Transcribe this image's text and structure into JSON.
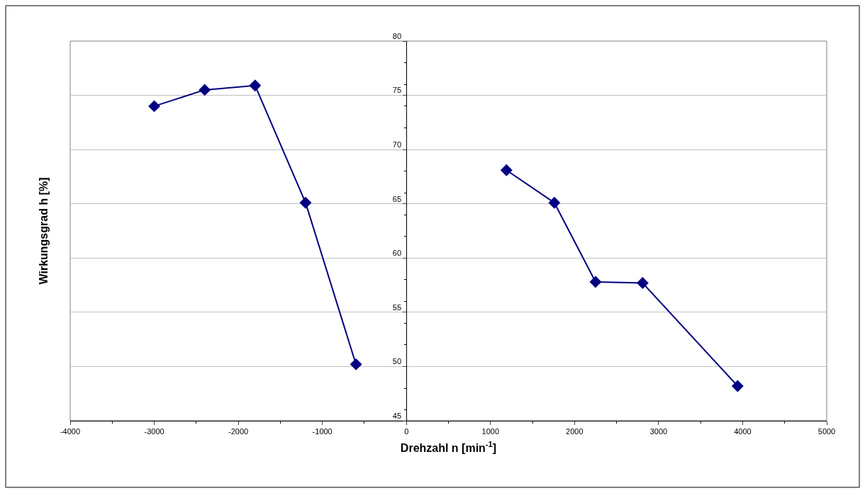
{
  "chart_data": {
    "type": "line",
    "xlabel": "Drehzahl n [min$^{-1}$]",
    "ylabel": "Wirkungsgrad h [%]",
    "series": [
      {
        "color": "#000080",
        "x": [
          -3000,
          -2400,
          -1800,
          -1200,
          -600
        ],
        "values": [
          74.0,
          75.5,
          75.9,
          65.1,
          50.2
        ]
      },
      {
        "color": "#000080",
        "x": [
          1190,
          1760,
          2250,
          2810,
          3940
        ],
        "values": [
          68.1,
          65.1,
          57.8,
          57.7,
          48.2
        ]
      }
    ],
    "xlim": [
      -4000,
      5000
    ],
    "xticks": [
      -4000,
      -3000,
      -2000,
      -1000,
      0,
      1000,
      2000,
      3000,
      4000,
      5000
    ],
    "ylim": [
      45,
      80
    ],
    "yticks": [
      45,
      50,
      55,
      60,
      65,
      70,
      75,
      80
    ],
    "grid": "y",
    "marker": "diamond",
    "line_style": "solid"
  }
}
